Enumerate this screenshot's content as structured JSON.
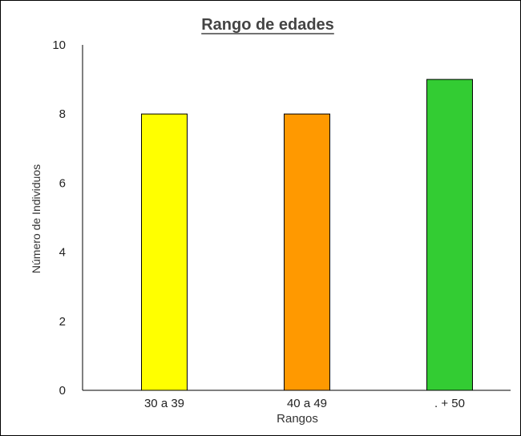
{
  "chart_data": {
    "type": "bar",
    "title": "Rango de edades",
    "xlabel": "Rangos",
    "ylabel": "Número de Individuos",
    "categories": [
      "30 a 39",
      "40 a 49",
      ". + 50"
    ],
    "values": [
      8,
      8,
      9
    ],
    "colors": [
      "#ffff00",
      "#ff9900",
      "#33cc33"
    ],
    "ylim": [
      0,
      10
    ],
    "yticks": [
      0,
      2,
      4,
      6,
      8,
      10
    ],
    "grid": false,
    "legend": "none"
  }
}
